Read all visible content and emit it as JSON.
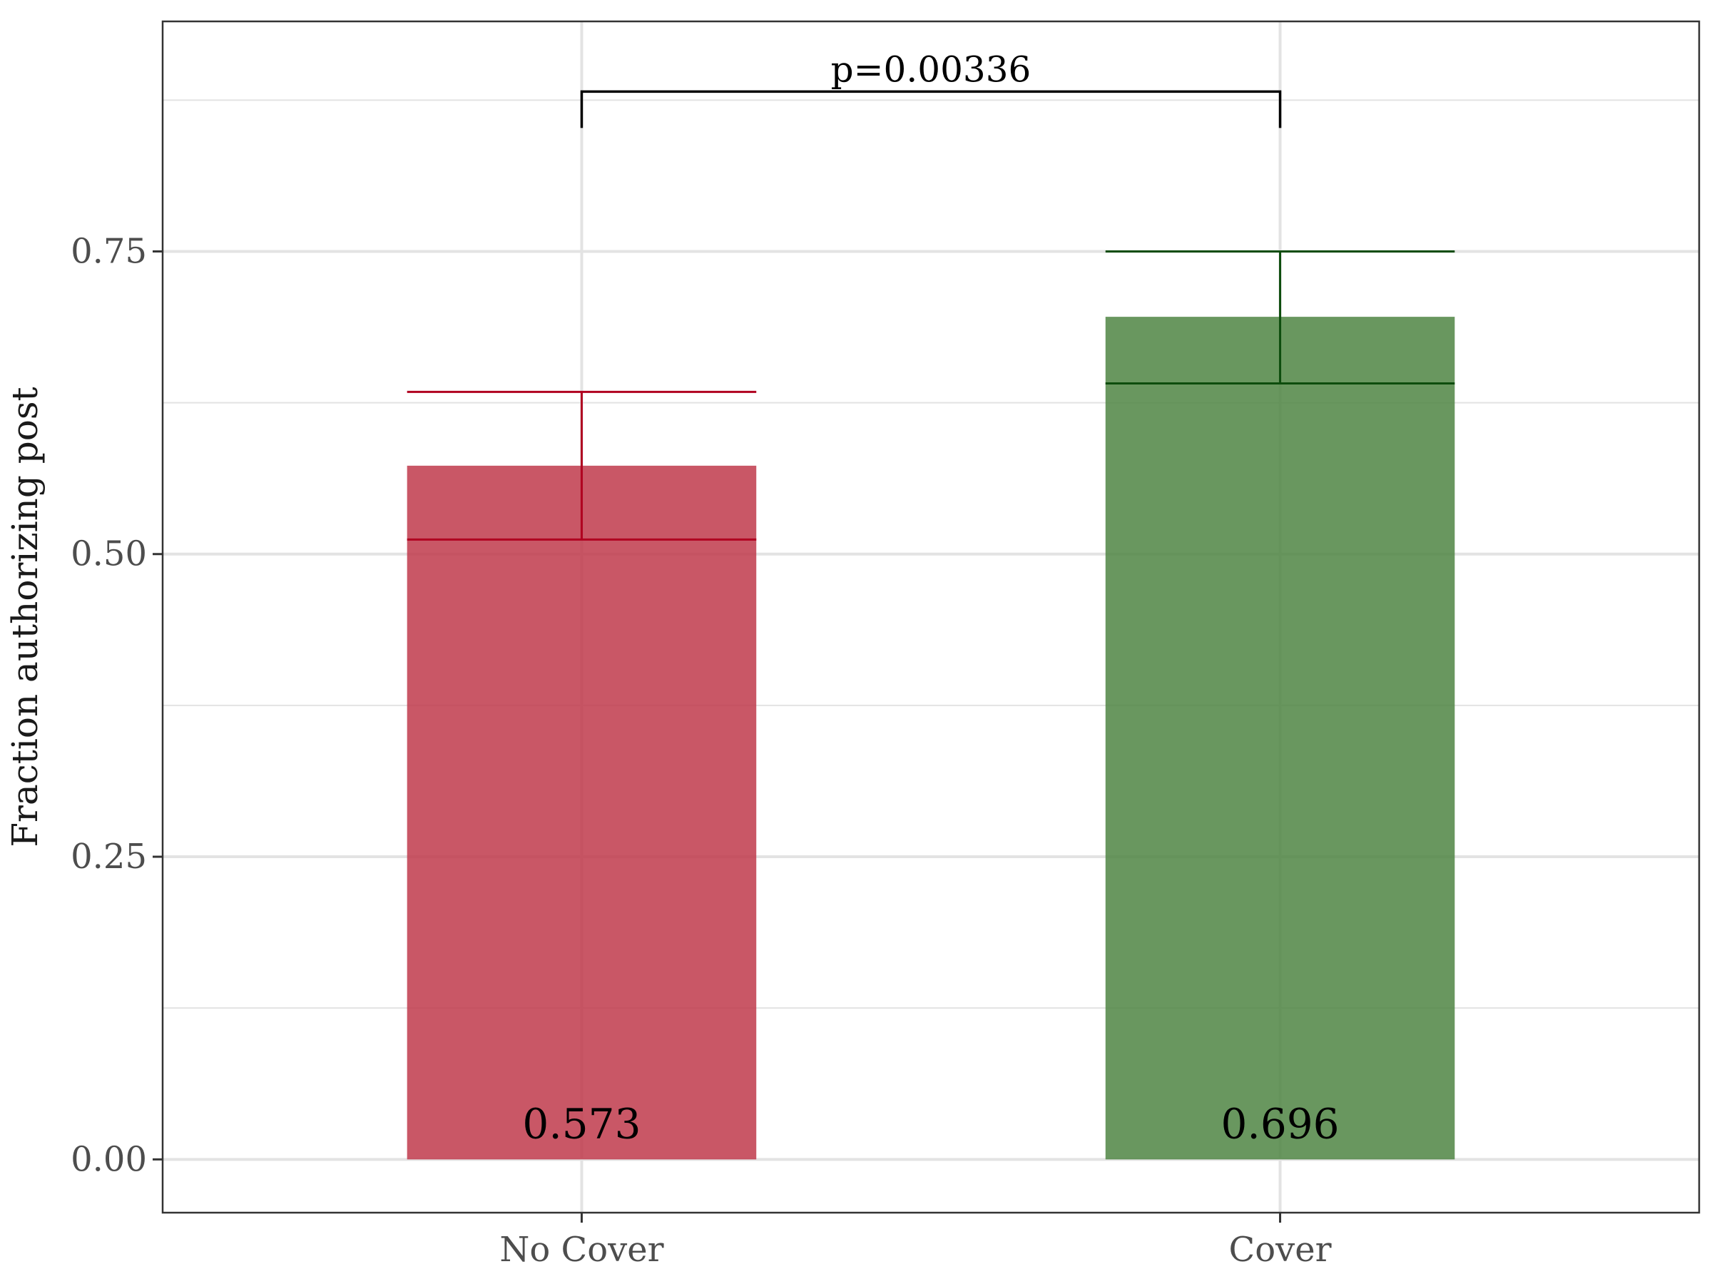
{
  "chart_data": {
    "type": "bar",
    "categories": [
      "No Cover",
      "Cover"
    ],
    "values": [
      0.573,
      0.696
    ],
    "value_labels": [
      "0.573",
      "0.696"
    ],
    "error_bars": [
      {
        "lower": 0.512,
        "upper": 0.634
      },
      {
        "lower": 0.641,
        "upper": 0.75
      }
    ],
    "colors": [
      "#c0394b",
      "#4f8543"
    ],
    "error_colors": [
      "#b00020",
      "#0d4d0d"
    ],
    "bar_opacity": 0.85,
    "ylabel": "Fraction authorizing post",
    "xlabel": "",
    "ylim": [
      -0.044,
      0.94
    ],
    "yticks": [
      0.0,
      0.25,
      0.5,
      0.75
    ],
    "ytick_labels": [
      "0.00",
      "0.25",
      "0.50",
      "0.75"
    ],
    "grid": true,
    "annotation": {
      "text": "p=0.00336",
      "from_category": 0,
      "to_category": 1,
      "y": 0.882,
      "drop": 0.03
    }
  }
}
